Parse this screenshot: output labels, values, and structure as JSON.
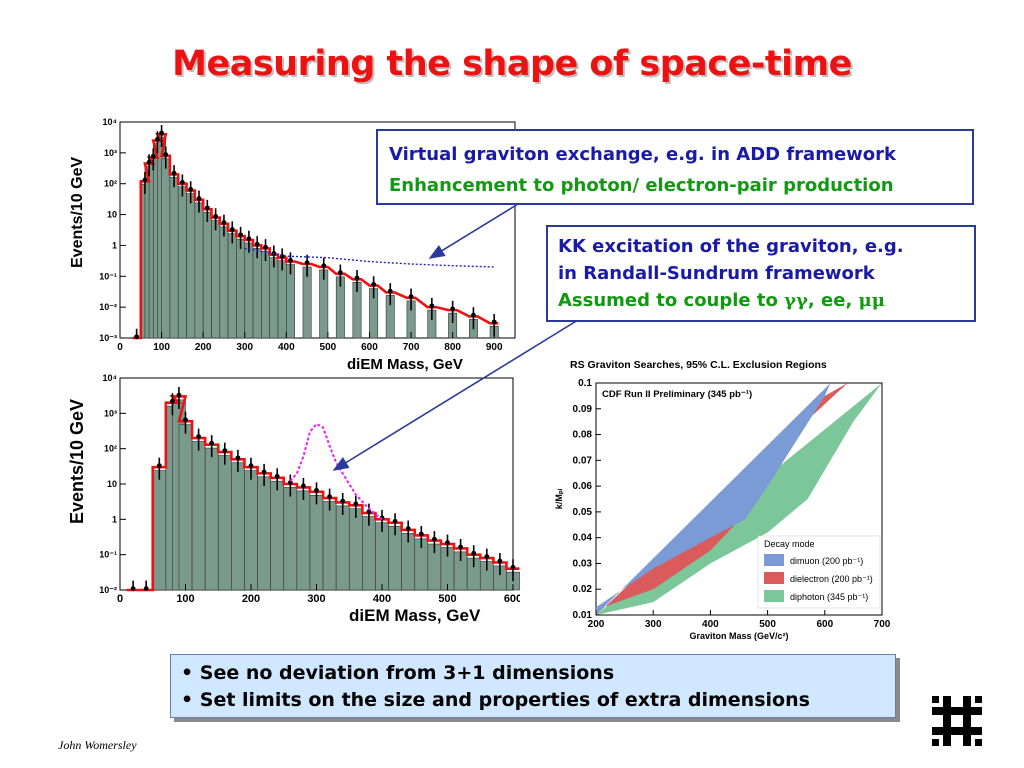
{
  "slide": {
    "title": "Measuring the shape of space-time",
    "author": "John Womersley"
  },
  "callouts": {
    "add": {
      "line1": "Virtual graviton exchange, e.g. in ADD framework",
      "line2": "Enhancement to photon/ electron-pair production"
    },
    "rs": {
      "line1": "KK excitation of the graviton, e.g.",
      "line2": "in Randall-Sundrum framework",
      "line3_prefix": "Assumed to couple to ",
      "line3_symbols": "γγ",
      "line3_mid": ", ee, ",
      "line3_symbols2": "μμ"
    }
  },
  "summary": {
    "bullets": [
      "See no deviation from 3+1 dimensions",
      "Set limits on the size and properties of extra dimensions"
    ]
  },
  "colors": {
    "title": "#ee1111",
    "callout_blue": "#1a1aa8",
    "callout_green": "#119911",
    "summary_bg": "#cfe8ff",
    "hist_fill": "#7a9a8e",
    "sm_line": "#ee1111",
    "add_signal": "#2222cc",
    "rs_signal": "#ee22ee",
    "dimuon": "#7b9bd6",
    "dielectron": "#d95b5b",
    "diphoton": "#7cc79a"
  },
  "chart_data": [
    {
      "type": "bar",
      "ylabel": "Events/10 GeV",
      "xlabel": "diEM Mass, GeV",
      "log_y": true,
      "xlim": [
        0,
        950
      ],
      "x_ticks": [
        "0",
        "100",
        "200",
        "300",
        "400",
        "500",
        "600",
        "700",
        "800",
        "900"
      ],
      "y_ticks": [
        "10⁻³",
        "10⁻²",
        "10⁻¹",
        "1",
        "10",
        "10²",
        "10³",
        "10⁴"
      ],
      "series": [
        {
          "x": [
            40,
            60,
            70,
            80,
            90,
            100,
            110,
            130,
            150,
            170,
            190,
            210,
            230,
            250,
            270,
            290,
            310,
            330,
            350,
            370,
            390,
            410,
            450,
            490,
            530,
            570,
            610,
            650,
            700,
            750,
            800,
            850,
            900
          ],
          "values": [
            0.001,
            120,
            450,
            700,
            2500,
            4000,
            800,
            200,
            100,
            60,
            30,
            15,
            8,
            5,
            3,
            2,
            1.5,
            1,
            0.8,
            0.5,
            0.4,
            0.3,
            0.25,
            0.2,
            0.12,
            0.08,
            0.05,
            0.03,
            0.02,
            0.01,
            0.008,
            0.005,
            0.003
          ]
        },
        {
          "x": [
            300,
            400,
            500,
            600,
            700,
            800,
            900
          ],
          "values": [
            0.8,
            0.45,
            0.4,
            0.3,
            0.25,
            0.22,
            0.2
          ]
        }
      ]
    },
    {
      "type": "bar",
      "ylabel": "Events/10 GeV",
      "xlabel": "diEM Mass, GeV",
      "log_y": true,
      "xlim": [
        0,
        600
      ],
      "x_ticks": [
        "0",
        "100",
        "200",
        "300",
        "400",
        "500",
        "600"
      ],
      "y_ticks": [
        "10⁻²",
        "10⁻¹",
        "1",
        "10",
        "10²",
        "10³",
        "10⁴"
      ],
      "series": [
        {
          "x": [
            20,
            40,
            60,
            80,
            90,
            100,
            120,
            140,
            160,
            180,
            200,
            220,
            240,
            260,
            280,
            300,
            320,
            340,
            360,
            380,
            400,
            420,
            440,
            460,
            480,
            500,
            520,
            540,
            560,
            580,
            600
          ],
          "values": [
            0.01,
            0.01,
            30,
            2000,
            3000,
            600,
            200,
            130,
            80,
            50,
            30,
            20,
            15,
            10,
            8,
            6,
            4,
            3,
            2.5,
            1.5,
            1,
            0.8,
            0.5,
            0.35,
            0.25,
            0.2,
            0.15,
            0.1,
            0.08,
            0.06,
            0.04
          ]
        },
        {
          "x": [
            260,
            270,
            280,
            290,
            300,
            310,
            320,
            330,
            340,
            360,
            380,
            400
          ],
          "values": [
            12,
            20,
            60,
            300,
            500,
            400,
            120,
            40,
            20,
            5,
            2,
            1
          ]
        }
      ]
    },
    {
      "type": "area",
      "title": "RS Graviton Searches, 95% C.L. Exclusion Regions",
      "annotation": "CDF Run II Preliminary (345 pb⁻¹)",
      "xlabel": "Graviton Mass (GeV/c²)",
      "ylabel": "k/Mₚₗ",
      "xlim": [
        200,
        700
      ],
      "ylim": [
        0.01,
        0.1
      ],
      "x_ticks": [
        "200",
        "300",
        "400",
        "500",
        "600",
        "700"
      ],
      "y_ticks": [
        "0.01",
        "0.02",
        "0.03",
        "0.04",
        "0.05",
        "0.06",
        "0.07",
        "0.08",
        "0.09",
        "0.1"
      ],
      "legend_title": "Decay mode",
      "legend_position": "bottom-right",
      "series": [
        {
          "name": "dimuon (200 pb⁻¹)",
          "x": [
            200,
            300,
            400,
            460,
            500,
            600,
            610
          ],
          "values": [
            0.013,
            0.028,
            0.04,
            0.047,
            0.06,
            0.095,
            0.1
          ]
        },
        {
          "name": "dielectron (200 pb⁻¹)",
          "x": [
            200,
            300,
            400,
            460,
            500,
            600,
            640
          ],
          "values": [
            0.012,
            0.02,
            0.035,
            0.049,
            0.065,
            0.095,
            0.1
          ]
        },
        {
          "name": "diphoton (345 pb⁻¹)",
          "x": [
            200,
            300,
            400,
            500,
            570,
            650,
            700
          ],
          "values": [
            0.01,
            0.015,
            0.03,
            0.042,
            0.055,
            0.085,
            0.1
          ]
        }
      ]
    }
  ]
}
